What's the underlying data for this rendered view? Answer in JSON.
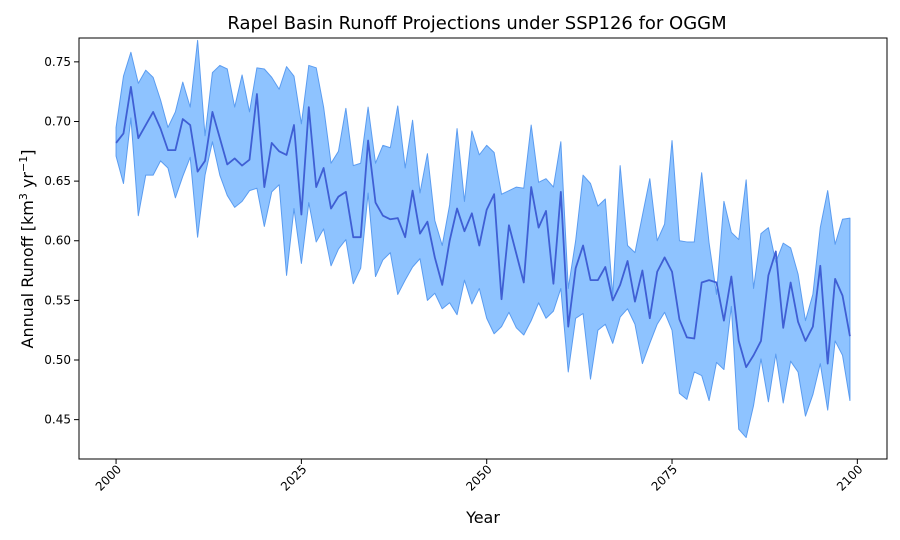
{
  "chart_data": {
    "type": "area",
    "title": "Rapel Basin Runoff Projections under SSP126 for OGGM",
    "xlabel": "Year",
    "ylabel": {
      "prefix": "Annual Runoff [km",
      "sup1": "3",
      "middle": " yr",
      "sup2": "−1",
      "suffix": "]"
    },
    "xlim": [
      1995,
      2104
    ],
    "ylim": [
      0.417,
      0.77
    ],
    "xticks": [
      2000,
      2025,
      2050,
      2075,
      2100
    ],
    "yticks": [
      0.45,
      0.5,
      0.55,
      0.6,
      0.65,
      0.7,
      0.75
    ],
    "ytick_labels": [
      "0.45",
      "0.50",
      "0.55",
      "0.60",
      "0.65",
      "0.70",
      "0.75"
    ],
    "grid": false,
    "colors": {
      "band_fill": "#8ec3ff",
      "band_edge": "#5b9cf0",
      "line": "#3f5fd4"
    },
    "x": [
      2000,
      2001,
      2002,
      2003,
      2004,
      2005,
      2006,
      2007,
      2008,
      2009,
      2010,
      2011,
      2012,
      2013,
      2014,
      2015,
      2016,
      2017,
      2018,
      2019,
      2020,
      2021,
      2022,
      2023,
      2024,
      2025,
      2026,
      2027,
      2028,
      2029,
      2030,
      2031,
      2032,
      2033,
      2034,
      2035,
      2036,
      2037,
      2038,
      2039,
      2040,
      2041,
      2042,
      2043,
      2044,
      2045,
      2046,
      2047,
      2048,
      2049,
      2050,
      2051,
      2052,
      2053,
      2054,
      2055,
      2056,
      2057,
      2058,
      2059,
      2060,
      2061,
      2062,
      2063,
      2064,
      2065,
      2066,
      2067,
      2068,
      2069,
      2070,
      2071,
      2072,
      2073,
      2074,
      2075,
      2076,
      2077,
      2078,
      2079,
      2080,
      2081,
      2082,
      2083,
      2084,
      2085,
      2086,
      2087,
      2088,
      2089,
      2090,
      2091,
      2092,
      2093,
      2094,
      2095,
      2096,
      2097,
      2098,
      2099
    ],
    "series": [
      {
        "role": "upper",
        "values": [
          0.695,
          0.738,
          0.758,
          0.732,
          0.743,
          0.737,
          0.718,
          0.695,
          0.708,
          0.733,
          0.712,
          0.768,
          0.688,
          0.741,
          0.747,
          0.744,
          0.712,
          0.739,
          0.708,
          0.745,
          0.744,
          0.737,
          0.727,
          0.746,
          0.738,
          0.698,
          0.747,
          0.745,
          0.712,
          0.665,
          0.675,
          0.711,
          0.663,
          0.665,
          0.712,
          0.665,
          0.68,
          0.678,
          0.713,
          0.661,
          0.701,
          0.64,
          0.673,
          0.617,
          0.596,
          0.63,
          0.694,
          0.633,
          0.692,
          0.672,
          0.68,
          0.674,
          0.639,
          0.642,
          0.645,
          0.644,
          0.697,
          0.649,
          0.652,
          0.645,
          0.683,
          0.56,
          0.6,
          0.655,
          0.648,
          0.629,
          0.635,
          0.554,
          0.663,
          0.596,
          0.59,
          0.621,
          0.652,
          0.6,
          0.614,
          0.684,
          0.6,
          0.599,
          0.599,
          0.657,
          0.598,
          0.555,
          0.633,
          0.607,
          0.601,
          0.651,
          0.56,
          0.606,
          0.611,
          0.582,
          0.598,
          0.594,
          0.572,
          0.533,
          0.555,
          0.611,
          0.642,
          0.597,
          0.618,
          0.619
        ]
      },
      {
        "role": "lower",
        "values": [
          0.671,
          0.648,
          0.703,
          0.621,
          0.655,
          0.655,
          0.667,
          0.661,
          0.636,
          0.654,
          0.67,
          0.603,
          0.655,
          0.683,
          0.655,
          0.638,
          0.628,
          0.633,
          0.642,
          0.644,
          0.612,
          0.641,
          0.647,
          0.571,
          0.627,
          0.581,
          0.632,
          0.599,
          0.61,
          0.579,
          0.593,
          0.601,
          0.564,
          0.577,
          0.64,
          0.57,
          0.584,
          0.59,
          0.555,
          0.567,
          0.578,
          0.585,
          0.55,
          0.556,
          0.543,
          0.548,
          0.538,
          0.567,
          0.547,
          0.56,
          0.535,
          0.522,
          0.528,
          0.54,
          0.527,
          0.521,
          0.533,
          0.548,
          0.535,
          0.541,
          0.56,
          0.49,
          0.535,
          0.539,
          0.484,
          0.525,
          0.53,
          0.514,
          0.536,
          0.543,
          0.53,
          0.497,
          0.514,
          0.53,
          0.54,
          0.525,
          0.472,
          0.467,
          0.49,
          0.487,
          0.466,
          0.498,
          0.492,
          0.545,
          0.442,
          0.435,
          0.462,
          0.501,
          0.465,
          0.505,
          0.464,
          0.499,
          0.49,
          0.453,
          0.471,
          0.497,
          0.458,
          0.516,
          0.504,
          0.466
        ]
      },
      {
        "role": "mean",
        "values": [
          0.682,
          0.69,
          0.729,
          0.686,
          0.697,
          0.708,
          0.694,
          0.676,
          0.676,
          0.702,
          0.697,
          0.658,
          0.667,
          0.708,
          0.686,
          0.664,
          0.669,
          0.663,
          0.668,
          0.723,
          0.645,
          0.682,
          0.675,
          0.672,
          0.697,
          0.622,
          0.712,
          0.645,
          0.661,
          0.627,
          0.637,
          0.641,
          0.603,
          0.603,
          0.684,
          0.632,
          0.621,
          0.618,
          0.619,
          0.603,
          0.642,
          0.606,
          0.616,
          0.586,
          0.563,
          0.6,
          0.627,
          0.608,
          0.623,
          0.596,
          0.626,
          0.639,
          0.551,
          0.613,
          0.589,
          0.565,
          0.645,
          0.611,
          0.625,
          0.564,
          0.641,
          0.528,
          0.577,
          0.596,
          0.567,
          0.567,
          0.578,
          0.55,
          0.563,
          0.583,
          0.549,
          0.575,
          0.535,
          0.574,
          0.586,
          0.574,
          0.534,
          0.519,
          0.518,
          0.565,
          0.567,
          0.565,
          0.533,
          0.57,
          0.516,
          0.494,
          0.504,
          0.516,
          0.571,
          0.591,
          0.527,
          0.565,
          0.532,
          0.516,
          0.528,
          0.579,
          0.497,
          0.568,
          0.554,
          0.52
        ]
      }
    ]
  }
}
